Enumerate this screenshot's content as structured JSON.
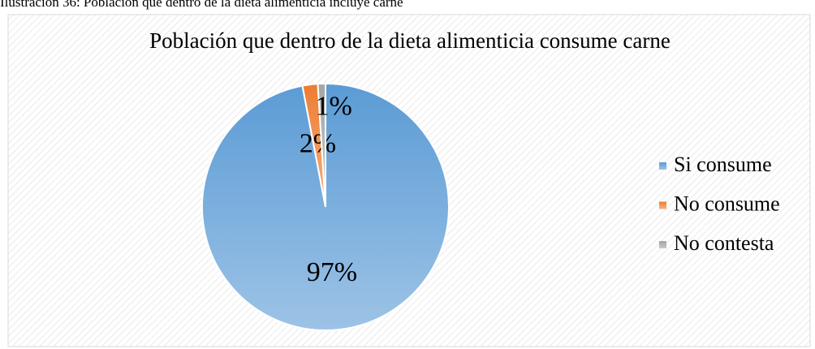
{
  "caption": "Ilustración 36: Población que dentro de la dieta alimenticia incluye carne",
  "chart_data": {
    "type": "pie",
    "title": "Población que dentro de la dieta alimenticia consume carne",
    "categories": [
      "Si consume",
      "No consume",
      "No contesta"
    ],
    "values": [
      97,
      2,
      1
    ],
    "value_labels": [
      "97%",
      "2%",
      "1%"
    ],
    "colors": [
      "#5b9bd5",
      "#ed7d31",
      "#a5a5a5"
    ],
    "legend": "right"
  }
}
